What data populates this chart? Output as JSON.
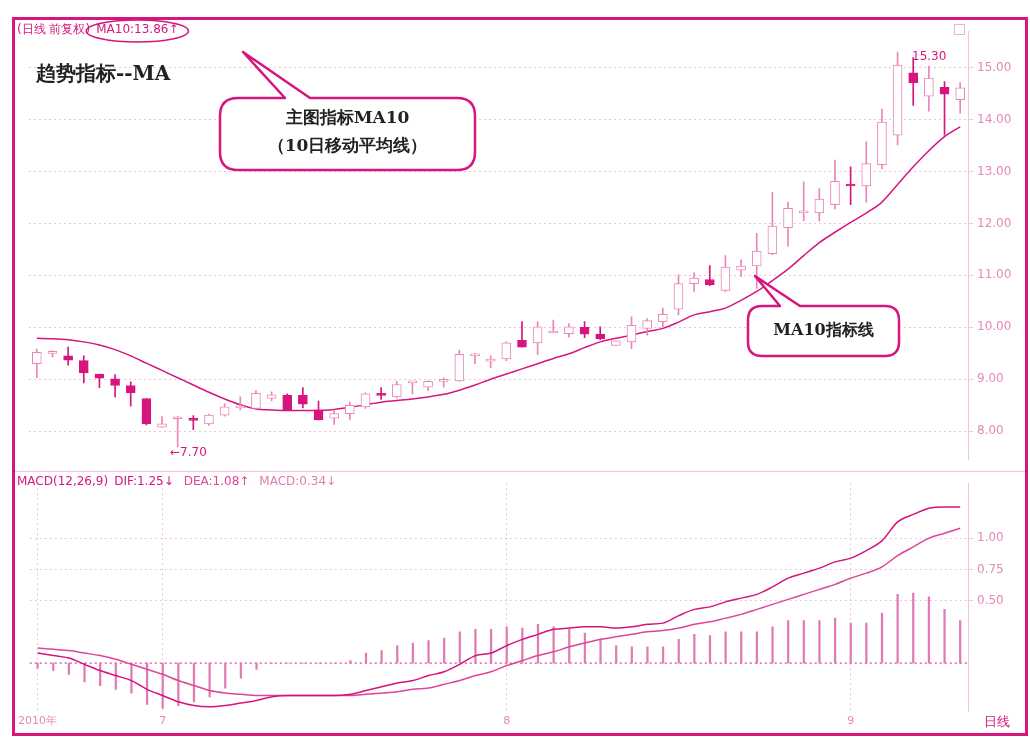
{
  "chart_data": [
    {
      "type": "candlestick",
      "title": "(日线 前复权)",
      "categories": [
        null,
        null,
        null,
        null,
        null,
        null,
        null,
        null,
        null,
        null,
        null,
        null,
        null,
        null,
        null,
        null,
        null,
        null,
        null,
        null,
        null,
        null,
        null,
        null,
        null,
        null,
        null,
        null,
        null,
        null,
        null,
        null,
        null,
        null,
        null,
        null,
        null,
        null,
        null,
        null,
        null,
        null,
        null,
        null,
        null,
        null,
        null,
        null,
        null,
        null,
        null,
        null,
        null,
        null,
        null,
        null,
        null,
        null,
        null,
        null
      ],
      "colors": [
        "#e986b8",
        "#e986b8",
        "#d6157f",
        "#d6157f",
        "#d6157f",
        "#d6157f",
        "#d6157f",
        "#d6157f",
        "#e986b8",
        "#e986b8",
        "#d6157f",
        "#e986b8",
        "#e986b8",
        "#e986b8",
        "#e986b8",
        "#e986b8",
        "#d6157f",
        "#d6157f",
        "#d6157f",
        "#e986b8",
        "#e986b8",
        "#e986b8",
        "#d6157f",
        "#e986b8",
        "#e986b8",
        "#e986b8",
        "#e986b8",
        "#e986b8",
        "#e986b8",
        "#e986b8",
        "#e986b8",
        "#d6157f",
        "#e986b8",
        "#e986b8",
        "#e986b8",
        "#d6157f",
        "#d6157f",
        "#e986b8",
        "#e986b8",
        "#e986b8",
        "#e986b8",
        "#e986b8",
        "#e986b8",
        "#d6157f",
        "#e986b8",
        "#e986b8",
        "#e986b8",
        "#e986b8",
        "#e986b8",
        "#e986b8",
        "#e986b8",
        "#e986b8",
        "#d6157f",
        "#e986b8",
        "#e986b8",
        "#e986b8",
        "#d6157f",
        "#e986b8",
        "#d6157f",
        "#e986b8"
      ],
      "ohlc": [
        [
          9.3,
          9.58,
          9.03,
          9.52
        ],
        [
          9.5,
          9.55,
          9.43,
          9.51
        ],
        [
          9.45,
          9.62,
          9.27,
          9.37
        ],
        [
          9.36,
          9.45,
          8.93,
          9.12
        ],
        [
          9.1,
          9.1,
          8.84,
          9.02
        ],
        [
          9.01,
          9.09,
          8.66,
          8.88
        ],
        [
          8.88,
          8.95,
          8.48,
          8.74
        ],
        [
          8.63,
          8.63,
          8.12,
          8.14
        ],
        [
          8.08,
          8.28,
          8.08,
          8.14
        ],
        [
          8.24,
          8.28,
          7.7,
          8.27
        ],
        [
          8.22,
          8.3,
          8.03,
          8.21
        ],
        [
          8.14,
          8.33,
          8.11,
          8.31
        ],
        [
          8.31,
          8.53,
          8.29,
          8.47
        ],
        [
          8.45,
          8.66,
          8.41,
          8.47
        ],
        [
          8.44,
          8.78,
          8.41,
          8.73
        ],
        [
          8.63,
          8.76,
          8.59,
          8.7
        ],
        [
          8.69,
          8.72,
          8.4,
          8.4
        ],
        [
          8.69,
          8.84,
          8.45,
          8.52
        ],
        [
          8.41,
          8.58,
          8.22,
          8.22
        ],
        [
          8.25,
          8.41,
          8.13,
          8.34
        ],
        [
          8.34,
          8.56,
          8.22,
          8.5
        ],
        [
          8.47,
          8.74,
          8.44,
          8.72
        ],
        [
          8.72,
          8.84,
          8.61,
          8.69
        ],
        [
          8.66,
          8.96,
          8.64,
          8.9
        ],
        [
          8.93,
          8.94,
          8.72,
          8.94
        ],
        [
          8.85,
          8.97,
          8.78,
          8.96
        ],
        [
          8.96,
          9.03,
          8.85,
          8.97
        ],
        [
          8.97,
          9.56,
          8.96,
          9.48
        ],
        [
          9.45,
          9.5,
          9.3,
          9.46
        ],
        [
          9.35,
          9.45,
          9.22,
          9.37
        ],
        [
          9.39,
          9.72,
          9.36,
          9.7
        ],
        [
          9.75,
          10.11,
          9.62,
          9.62
        ],
        [
          9.7,
          10.11,
          9.48,
          10.01
        ],
        [
          9.89,
          10.14,
          9.89,
          9.9
        ],
        [
          9.88,
          10.07,
          9.81,
          10.01
        ],
        [
          10.0,
          10.11,
          9.8,
          9.87
        ],
        [
          9.87,
          10.01,
          9.76,
          9.78
        ],
        [
          9.65,
          9.74,
          9.65,
          9.74
        ],
        [
          9.72,
          10.2,
          9.59,
          10.04
        ],
        [
          9.98,
          10.17,
          9.85,
          10.13
        ],
        [
          10.11,
          10.37,
          10.01,
          10.25
        ],
        [
          10.35,
          11.01,
          10.24,
          10.84
        ],
        [
          10.84,
          11.05,
          10.69,
          10.95
        ],
        [
          10.92,
          11.19,
          10.8,
          10.82
        ],
        [
          10.71,
          11.38,
          10.69,
          11.16
        ],
        [
          11.1,
          11.3,
          10.98,
          11.18
        ],
        [
          11.18,
          11.81,
          10.75,
          11.47
        ],
        [
          11.42,
          12.6,
          11.4,
          11.95
        ],
        [
          11.92,
          12.41,
          11.56,
          12.29
        ],
        [
          12.2,
          12.8,
          12.05,
          12.24
        ],
        [
          12.2,
          12.67,
          12.05,
          12.47
        ],
        [
          12.36,
          13.22,
          12.28,
          12.81
        ],
        [
          12.75,
          13.09,
          12.36,
          12.72
        ],
        [
          12.72,
          13.57,
          12.41,
          13.15
        ],
        [
          13.13,
          14.2,
          13.05,
          13.95
        ],
        [
          13.7,
          15.3,
          13.51,
          15.05
        ],
        [
          14.9,
          15.19,
          14.27,
          14.71
        ],
        [
          14.45,
          15.03,
          14.16,
          14.8
        ],
        [
          14.62,
          14.73,
          13.7,
          14.49
        ],
        [
          14.38,
          14.71,
          14.12,
          14.61
        ]
      ],
      "series": [
        {
          "type": "line",
          "name": "MA10:13.86↑",
          "color": "#d6157f",
          "values": [
            9.79,
            9.78,
            9.76,
            9.72,
            9.66,
            9.57,
            9.45,
            9.31,
            9.17,
            9.03,
            8.89,
            8.75,
            8.62,
            8.51,
            8.43,
            8.41,
            8.4,
            8.4,
            8.4,
            8.42,
            8.46,
            8.51,
            8.56,
            8.59,
            8.62,
            8.66,
            8.71,
            8.79,
            8.89,
            9.0,
            9.1,
            9.2,
            9.3,
            9.4,
            9.49,
            9.61,
            9.72,
            9.79,
            9.85,
            9.92,
            9.98,
            10.1,
            10.24,
            10.3,
            10.37,
            10.52,
            10.69,
            10.9,
            11.12,
            11.38,
            11.63,
            11.83,
            12.02,
            12.2,
            12.41,
            12.75,
            13.09,
            13.4,
            13.67,
            13.86
          ]
        }
      ],
      "ylim": [
        7.45,
        15.7
      ],
      "yticks": [
        {
          "value": 8,
          "label": "8.00"
        },
        {
          "value": 9,
          "label": "9.00"
        },
        {
          "value": 10,
          "label": "10.00"
        },
        {
          "value": 11,
          "label": "11.00"
        },
        {
          "value": 12,
          "label": "12.00"
        },
        {
          "value": 13,
          "label": "13.00"
        },
        {
          "value": 14,
          "label": "14.00"
        },
        {
          "value": 15,
          "label": "15.00"
        }
      ],
      "grid": true,
      "legend": "top left",
      "tick_labels": "y",
      "annotations": [
        "趋势指标--MA",
        "主图指标MA10\n（10日移动平均线）",
        "MA10指标线",
        "15.30",
        "←7.70"
      ]
    },
    {
      "type": "bar",
      "title": "MACD(12,26,9)",
      "xlabel": "日线",
      "categories": [
        "2010年",
        null,
        null,
        null,
        null,
        null,
        null,
        null,
        "7",
        null,
        null,
        null,
        null,
        null,
        null,
        null,
        null,
        null,
        null,
        null,
        null,
        null,
        null,
        null,
        null,
        null,
        null,
        null,
        null,
        null,
        "8",
        null,
        null,
        null,
        null,
        null,
        null,
        null,
        null,
        null,
        null,
        null,
        null,
        null,
        null,
        null,
        null,
        null,
        null,
        null,
        null,
        null,
        "9",
        null,
        null,
        null,
        null,
        null,
        null,
        null
      ],
      "series": [
        {
          "type": "line",
          "name": "DIF:1.25↓",
          "color": "#d4147e",
          "values": [
            0.08,
            0.06,
            0.04,
            -0.01,
            -0.06,
            -0.1,
            -0.14,
            -0.21,
            -0.26,
            -0.31,
            -0.34,
            -0.35,
            -0.34,
            -0.32,
            -0.3,
            -0.27,
            -0.26,
            -0.26,
            -0.26,
            -0.26,
            -0.25,
            -0.22,
            -0.19,
            -0.16,
            -0.14,
            -0.1,
            -0.07,
            -0.01,
            0.06,
            0.08,
            0.14,
            0.19,
            0.23,
            0.27,
            0.28,
            0.29,
            0.29,
            0.28,
            0.29,
            0.31,
            0.32,
            0.38,
            0.43,
            0.45,
            0.49,
            0.52,
            0.55,
            0.61,
            0.68,
            0.72,
            0.76,
            0.81,
            0.84,
            0.9,
            0.98,
            1.13,
            1.19,
            1.24,
            1.25,
            1.25
          ]
        },
        {
          "type": "line",
          "name": "DEA:1.08↑",
          "color": "#e0449a",
          "values": [
            0.12,
            0.11,
            0.1,
            0.08,
            0.06,
            0.03,
            -0.01,
            -0.05,
            -0.09,
            -0.14,
            -0.18,
            -0.22,
            -0.24,
            -0.25,
            -0.26,
            -0.26,
            -0.26,
            -0.26,
            -0.26,
            -0.26,
            -0.26,
            -0.25,
            -0.24,
            -0.23,
            -0.21,
            -0.2,
            -0.17,
            -0.14,
            -0.1,
            -0.07,
            -0.02,
            0.02,
            0.06,
            0.09,
            0.13,
            0.16,
            0.19,
            0.21,
            0.23,
            0.25,
            0.26,
            0.28,
            0.31,
            0.33,
            0.36,
            0.39,
            0.43,
            0.47,
            0.51,
            0.55,
            0.59,
            0.63,
            0.68,
            0.72,
            0.77,
            0.86,
            0.93,
            1.0,
            1.04,
            1.08
          ]
        },
        {
          "type": "bar",
          "name": "MACD:0.34↓",
          "color": "#e07cb3",
          "values": [
            -0.04,
            -0.06,
            -0.09,
            -0.15,
            -0.18,
            -0.21,
            -0.24,
            -0.33,
            -0.36,
            -0.34,
            -0.31,
            -0.27,
            -0.2,
            -0.12,
            -0.05,
            0,
            0,
            0,
            0,
            0,
            0.02,
            0.08,
            0.1,
            0.14,
            0.16,
            0.18,
            0.2,
            0.25,
            0.27,
            0.27,
            0.29,
            0.28,
            0.31,
            0.29,
            0.27,
            0.24,
            0.19,
            0.14,
            0.13,
            0.13,
            0.13,
            0.19,
            0.23,
            0.22,
            0.25,
            0.25,
            0.25,
            0.29,
            0.34,
            0.34,
            0.34,
            0.36,
            0.32,
            0.32,
            0.4,
            0.55,
            0.56,
            0.53,
            0.43,
            0.34
          ]
        }
      ],
      "ylim": [
        -0.39,
        1.44
      ],
      "yticks": [
        {
          "value": 0.5,
          "label": "0.50"
        },
        {
          "value": 0.75,
          "label": "0.75"
        },
        {
          "value": 1,
          "label": "1.00"
        }
      ],
      "grid": true,
      "legend": "top left",
      "ref_lines": [
        {
          "axis": "y",
          "value": 0,
          "color": "#d6157f",
          "line_style": "dotted"
        }
      ]
    }
  ]
}
